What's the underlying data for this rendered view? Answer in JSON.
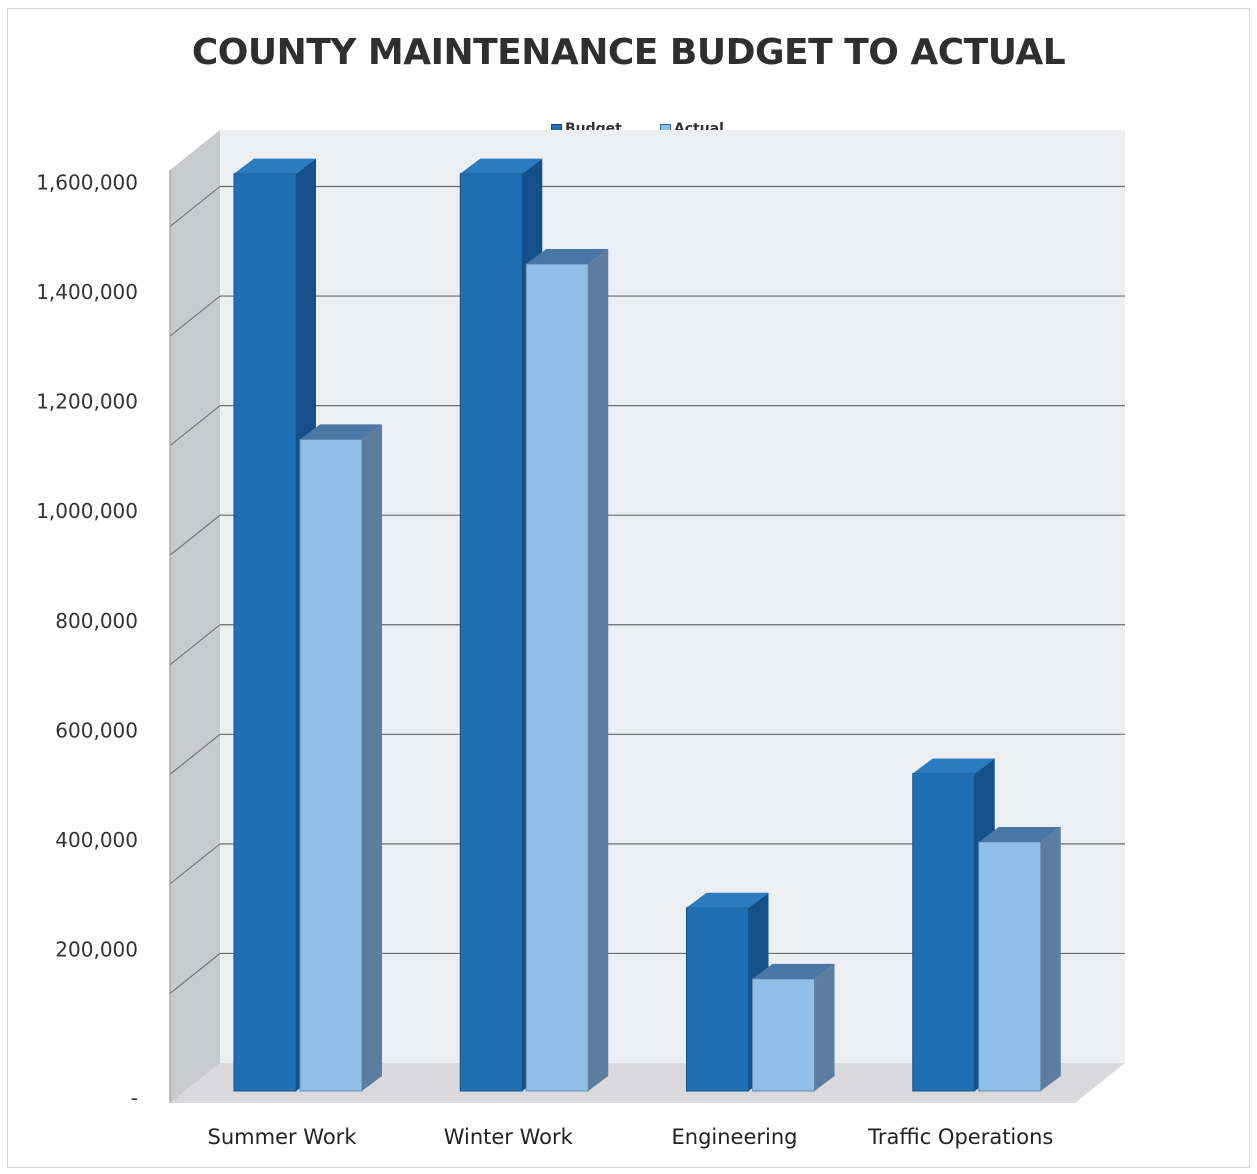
{
  "chart_data": {
    "type": "bar",
    "title": "COUNTY MAINTENANCE BUDGET TO ACTUAL",
    "categories": [
      "Summer Work",
      "Winter Work",
      "Engineering",
      "Traffic Operations"
    ],
    "series": [
      {
        "name": "Budget",
        "values": [
          1660000,
          1660000,
          320000,
          565000
        ],
        "color": "#1f6fb4"
      },
      {
        "name": "Actual",
        "values": [
          1175000,
          1495000,
          190000,
          440000
        ],
        "color": "#8fbfe6"
      }
    ],
    "y_ticks": [
      "-",
      "200,000",
      "400,000",
      "600,000",
      "800,000",
      "1,000,000",
      "1,200,000",
      "1,400,000",
      "1,600,000"
    ],
    "ylim": [
      0,
      1800000
    ],
    "grid": true,
    "legend_position": "top-center",
    "style": "3d-column"
  }
}
